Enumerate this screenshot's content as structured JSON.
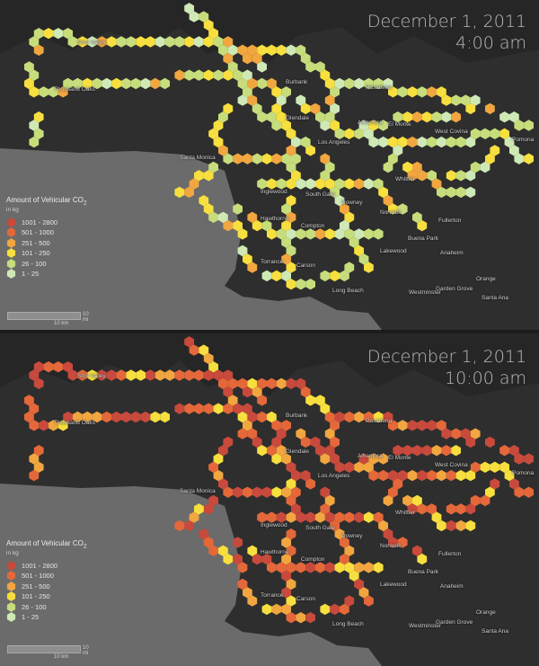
{
  "panels": [
    {
      "date": "December 1, 2011",
      "time": "4:00 am"
    },
    {
      "date": "December 1, 2011",
      "time": "10:00 am"
    }
  ],
  "legend": {
    "title": "Amount of Vehicular CO",
    "title_sub": "2",
    "unit": "in kg",
    "classes": [
      {
        "label": "1001 - 2800",
        "color": "#c84a3c"
      },
      {
        "label": "501 - 1000",
        "color": "#e4683a"
      },
      {
        "label": "251 - 500",
        "color": "#f1a640"
      },
      {
        "label": "101 - 250",
        "color": "#f6df3e"
      },
      {
        "label": "26 - 100",
        "color": "#c7dd7c"
      },
      {
        "label": "1 - 25",
        "color": "#cfe9b6"
      }
    ]
  },
  "scale": {
    "mi": "10 mi",
    "km": "10 km"
  },
  "cities": [
    {
      "name": "Simi Valley"
    },
    {
      "name": "Thousand Oaks"
    },
    {
      "name": "Burbank"
    },
    {
      "name": "Pasadena"
    },
    {
      "name": "Glendale"
    },
    {
      "name": "Alhambra"
    },
    {
      "name": "El Monte"
    },
    {
      "name": "Los Angeles"
    },
    {
      "name": "West Covina"
    },
    {
      "name": "Pomona"
    },
    {
      "name": "Santa Monica"
    },
    {
      "name": "Whittier"
    },
    {
      "name": "Inglewood"
    },
    {
      "name": "South Gate"
    },
    {
      "name": "Downey"
    },
    {
      "name": "Norwalk"
    },
    {
      "name": "Hawthorne"
    },
    {
      "name": "Compton"
    },
    {
      "name": "Fullerton"
    },
    {
      "name": "Buena Park"
    },
    {
      "name": "Anaheim"
    },
    {
      "name": "Lakewood"
    },
    {
      "name": "Torrance"
    },
    {
      "name": "Carson"
    },
    {
      "name": "Orange"
    },
    {
      "name": "Garden Grove"
    },
    {
      "name": "Long Beach"
    },
    {
      "name": "Westminster"
    },
    {
      "name": "Santa Ana"
    }
  ]
}
